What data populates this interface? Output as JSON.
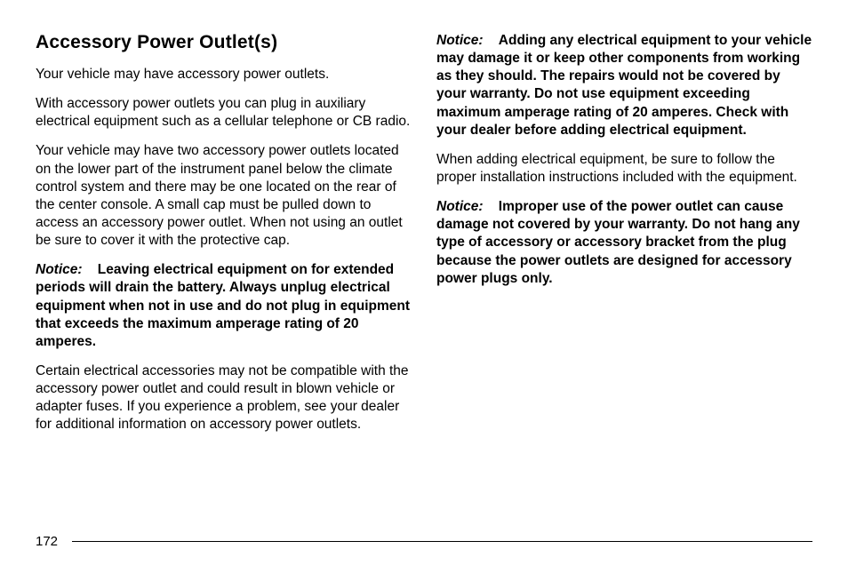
{
  "heading": "Accessory Power Outlet(s)",
  "left_column": {
    "p1": "Your vehicle may have accessory power outlets.",
    "p2": "With accessory power outlets you can plug in auxiliary electrical equipment such as a cellular telephone or CB radio.",
    "p3": "Your vehicle may have two accessory power outlets located on the lower part of the instrument panel below the climate control system and there may be one located on the rear of the center console. A small cap must be pulled down to access an accessory power outlet. When not using an outlet be sure to cover it with the protective cap.",
    "notice1_label": "Notice:",
    "notice1_body": "Leaving electrical equipment on for extended periods will drain the battery. Always unplug electrical equipment when not in use and do not plug in equipment that exceeds the maximum amperage rating of 20 amperes.",
    "p4": "Certain electrical accessories may not be compatible with the accessory power outlet and could result in blown vehicle or adapter fuses. If you experience a problem, see your dealer for additional information on accessory power outlets."
  },
  "right_column": {
    "notice2_label": "Notice:",
    "notice2_body": "Adding any electrical equipment to your vehicle may damage it or keep other components from working as they should. The repairs would not be covered by your warranty. Do not use equipment exceeding maximum amperage rating of 20 amperes. Check with your dealer before adding electrical equipment.",
    "p5": "When adding electrical equipment, be sure to follow the proper installation instructions included with the equipment.",
    "notice3_label": "Notice:",
    "notice3_body": "Improper use of the power outlet can cause damage not covered by your warranty. Do not hang any type of accessory or accessory bracket from the plug because the power outlets are designed for accessory power plugs only."
  },
  "page_number": "172",
  "styles": {
    "body_font_size": 15.5,
    "heading_font_size": 21,
    "text_color": "#000000",
    "background_color": "#ffffff",
    "line_height": 1.3
  }
}
